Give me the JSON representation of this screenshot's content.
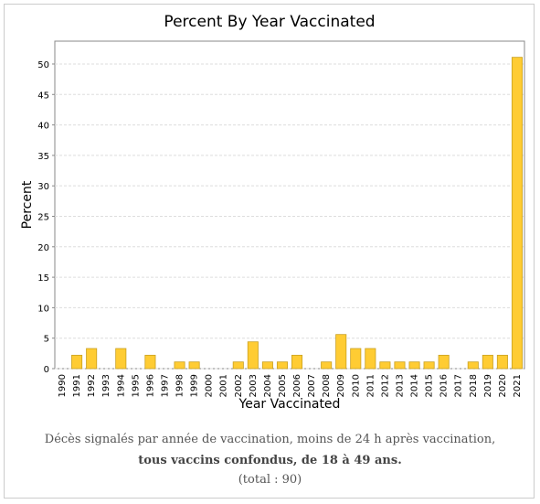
{
  "chart_data": {
    "type": "bar",
    "title": "Percent By Year Vaccinated",
    "x_label": "Year Vaccinated",
    "y_label": "Percent",
    "categories": [
      "1990",
      "1991",
      "1992",
      "1993",
      "1994",
      "1995",
      "1996",
      "1997",
      "1998",
      "1999",
      "2000",
      "2001",
      "2002",
      "2003",
      "2004",
      "2005",
      "2006",
      "2007",
      "2008",
      "2009",
      "2010",
      "2011",
      "2012",
      "2013",
      "2014",
      "2015",
      "2016",
      "2017",
      "2018",
      "2019",
      "2020",
      "2021"
    ],
    "values": [
      0,
      2.2,
      3.3,
      0,
      3.3,
      0,
      2.2,
      0,
      1.1,
      1.1,
      0,
      0,
      1.1,
      4.4,
      1.1,
      1.1,
      2.2,
      0,
      1.1,
      5.6,
      3.3,
      3.3,
      1.1,
      1.1,
      1.1,
      1.1,
      2.2,
      0,
      1.1,
      2.2,
      2.2,
      51.1
    ],
    "color": "#ffcc33",
    "ylim": [
      0,
      53.75
    ],
    "yticks": [
      0,
      5,
      10,
      15,
      20,
      25,
      30,
      35,
      40,
      45,
      50
    ],
    "grid": true
  },
  "caption": {
    "line1": "Décès signalés par année de vaccination, moins de 24 h après vaccination,",
    "line2": "tous vaccins confondus, de 18 à 49 ans.",
    "line3": "(total : 90)"
  }
}
